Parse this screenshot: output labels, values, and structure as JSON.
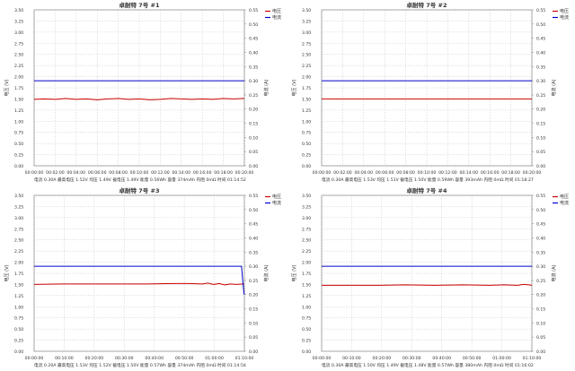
{
  "chart_data": [
    {
      "type": "line",
      "title": "卓耐特 7号 #1",
      "ylabel_left": "电压 (V)",
      "ylabel_right": "电流 (A)",
      "ylim_left": [
        0,
        3.5
      ],
      "ylim_right": [
        0,
        0.55
      ],
      "y_ticks_left": [
        "0.00",
        "0.25",
        "0.50",
        "0.75",
        "1.00",
        "1.25",
        "1.50",
        "1.75",
        "2.00",
        "2.25",
        "2.50",
        "2.75",
        "3.00",
        "3.25",
        "3.50"
      ],
      "y_ticks_right": [
        "0.00",
        "0.05",
        "0.10",
        "0.15",
        "0.20",
        "0.25",
        "0.30",
        "0.35",
        "0.40",
        "0.45",
        "0.50",
        "0.55"
      ],
      "x_ticks": [
        "00:00:00",
        "00:02:00",
        "00:04:00",
        "00:06:00",
        "00:08:00",
        "00:10:00",
        "00:12:00",
        "00:14:00",
        "00:16:00",
        "00:18:00",
        "00:20:00"
      ],
      "x_range_min": [
        0,
        20
      ],
      "grid": true,
      "legend_position": "top-right",
      "series": [
        {
          "name": "电压",
          "color": "#cc0000",
          "axis": "left",
          "x": [
            0,
            1,
            2,
            3,
            4,
            5,
            6,
            7,
            8,
            9,
            10,
            11,
            12,
            13,
            14,
            15,
            16,
            17,
            18,
            19,
            20
          ],
          "values": [
            1.49,
            1.5,
            1.49,
            1.51,
            1.49,
            1.5,
            1.48,
            1.5,
            1.51,
            1.49,
            1.5,
            1.48,
            1.49,
            1.51,
            1.5,
            1.49,
            1.5,
            1.49,
            1.51,
            1.5,
            1.51
          ]
        },
        {
          "name": "电流",
          "color": "#0000cc",
          "axis": "right",
          "x": [
            0,
            20
          ],
          "values": [
            0.3,
            0.3
          ]
        }
      ],
      "info": "电流 0.30A  最高电压 1.52V  均压 1.49V  截电压 1.49V  能量 0.56Wh  容量 374mAh  内阻 0mΩ  时间 01:14:52"
    },
    {
      "type": "line",
      "title": "卓耐特 7号 #2",
      "ylabel_left": "电压 (V)",
      "ylabel_right": "电流 (A)",
      "ylim_left": [
        0,
        3.5
      ],
      "ylim_right": [
        0,
        0.55
      ],
      "y_ticks_left": [
        "0.00",
        "0.25",
        "0.50",
        "0.75",
        "1.00",
        "1.25",
        "1.50",
        "1.75",
        "2.00",
        "2.25",
        "2.50",
        "2.75",
        "3.00",
        "3.25",
        "3.50"
      ],
      "y_ticks_right": [
        "0.00",
        "0.05",
        "0.10",
        "0.15",
        "0.20",
        "0.25",
        "0.30",
        "0.35",
        "0.40",
        "0.45",
        "0.50",
        "0.55"
      ],
      "x_ticks": [
        "00:00:00",
        "00:02:00",
        "00:04:00",
        "00:06:00",
        "00:08:00",
        "00:10:00",
        "00:12:00",
        "00:14:00",
        "00:16:00",
        "00:18:00",
        "00:20:00"
      ],
      "x_range_min": [
        0,
        20
      ],
      "grid": true,
      "legend_position": "top-right",
      "series": [
        {
          "name": "电压",
          "color": "#cc0000",
          "axis": "left",
          "x": [
            0,
            2,
            4,
            6,
            8,
            10,
            12,
            14,
            16,
            18,
            20
          ],
          "values": [
            1.5,
            1.5,
            1.5,
            1.5,
            1.5,
            1.5,
            1.5,
            1.5,
            1.5,
            1.5,
            1.5
          ]
        },
        {
          "name": "电流",
          "color": "#0000cc",
          "axis": "right",
          "x": [
            0,
            20
          ],
          "values": [
            0.3,
            0.3
          ]
        }
      ],
      "info": "电流 0.30A  最高电压 1.53V  均压 1.51V  截电压 1.50V  能量 0.59Wh  容量 393mAh  内阻 0mΩ  时间 01:18:27"
    },
    {
      "type": "line",
      "title": "卓耐特 7号 #3",
      "ylabel_left": "电压 (V)",
      "ylabel_right": "电流 (A)",
      "ylim_left": [
        0,
        3.5
      ],
      "ylim_right": [
        0,
        0.55
      ],
      "y_ticks_left": [
        "0.00",
        "0.25",
        "0.50",
        "0.75",
        "1.00",
        "1.25",
        "1.50",
        "1.75",
        "2.00",
        "2.25",
        "2.50",
        "2.75",
        "3.00",
        "3.25",
        "3.50"
      ],
      "y_ticks_right": [
        "0.00",
        "0.05",
        "0.10",
        "0.15",
        "0.20",
        "0.25",
        "0.30",
        "0.35",
        "0.40",
        "0.45",
        "0.50",
        "0.55"
      ],
      "x_ticks": [
        "00:00:00",
        "00:10:00",
        "00:20:00",
        "00:30:00",
        "00:40:00",
        "00:50:00",
        "01:00:00",
        "01:10:00"
      ],
      "x_range_min": [
        0,
        75
      ],
      "grid": true,
      "legend_position": "top-right",
      "series": [
        {
          "name": "电压",
          "color": "#cc0000",
          "axis": "left",
          "x": [
            0,
            10,
            20,
            30,
            40,
            50,
            55,
            60,
            62,
            64,
            66,
            68,
            70,
            72,
            74.9
          ],
          "values": [
            1.5,
            1.51,
            1.51,
            1.51,
            1.51,
            1.52,
            1.52,
            1.51,
            1.53,
            1.5,
            1.52,
            1.49,
            1.51,
            1.5,
            1.51
          ]
        },
        {
          "name": "电流",
          "color": "#0000cc",
          "axis": "right",
          "x": [
            0,
            74,
            74.4,
            74.9
          ],
          "values": [
            0.3,
            0.3,
            0.25,
            0.2
          ]
        }
      ],
      "info": "电流 0.20A  最高电压 1.53V  均压 1.52V  截电压 1.50V  能量 0.57Wh  容量 374mAh  内阻 0mΩ  时间 01:14:54"
    },
    {
      "type": "line",
      "title": "卓耐特 7号 #4",
      "ylabel_left": "电压 (V)",
      "ylabel_right": "电流 (A)",
      "ylim_left": [
        0,
        3.5
      ],
      "ylim_right": [
        0,
        0.55
      ],
      "y_ticks_left": [
        "0.00",
        "0.25",
        "0.50",
        "0.75",
        "1.00",
        "1.25",
        "1.50",
        "1.75",
        "2.00",
        "2.25",
        "2.50",
        "2.75",
        "3.00",
        "3.25",
        "3.50"
      ],
      "y_ticks_right": [
        "0.00",
        "0.05",
        "0.10",
        "0.15",
        "0.20",
        "0.25",
        "0.30",
        "0.35",
        "0.40",
        "0.45",
        "0.50",
        "0.55"
      ],
      "x_ticks": [
        "00:00:00",
        "00:10:00",
        "00:20:00",
        "00:30:00",
        "00:40:00",
        "00:50:00",
        "01:00:00",
        "01:10:00"
      ],
      "x_range_min": [
        0,
        75
      ],
      "grid": true,
      "legend_position": "top-right",
      "series": [
        {
          "name": "电压",
          "color": "#cc0000",
          "axis": "left",
          "x": [
            0,
            10,
            20,
            30,
            40,
            50,
            60,
            65,
            70,
            72,
            74,
            75
          ],
          "values": [
            1.48,
            1.48,
            1.48,
            1.49,
            1.48,
            1.49,
            1.48,
            1.49,
            1.48,
            1.5,
            1.49,
            1.48
          ]
        },
        {
          "name": "电流",
          "color": "#0000cc",
          "axis": "right",
          "x": [
            0,
            75
          ],
          "values": [
            0.3,
            0.3
          ]
        }
      ],
      "info": "电流 0.30A  最高电压 1.50V  均压 1.49V  截电压 1.48V  能量 0.57Wh  容量 380mAh  内阻 0mΩ  时间 01:16:02"
    }
  ]
}
